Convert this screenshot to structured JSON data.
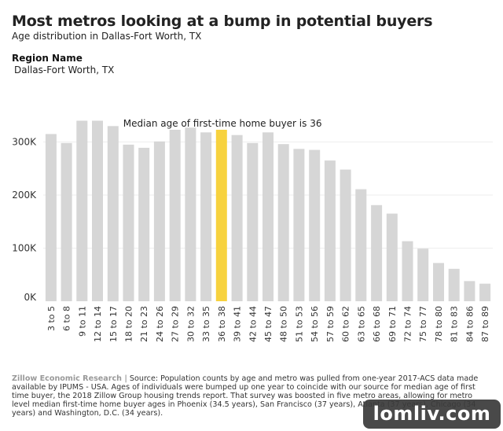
{
  "header": {
    "title": "Most metros looking at a bump in potential buyers",
    "subtitle": "Age distribution in Dallas-Fort Worth, TX"
  },
  "region": {
    "label": "Region Name",
    "value": "Dallas-Fort Worth, TX"
  },
  "chart_data": {
    "type": "bar",
    "title": "Most metros looking at a bump in potential buyers",
    "xlabel": "",
    "ylabel": "",
    "ylim": [
      0,
      350000
    ],
    "grid": true,
    "y_ticks": [
      {
        "value": 0,
        "label": "0K"
      },
      {
        "value": 100000,
        "label": "100K"
      },
      {
        "value": 200000,
        "label": "200K"
      },
      {
        "value": 300000,
        "label": "300K"
      }
    ],
    "categories": [
      "3 to 5",
      "6 to 8",
      "9 to 11",
      "12 to 14",
      "15 to 17",
      "18 to 20",
      "21 to 23",
      "24 to 26",
      "27 to 29",
      "30 to 32",
      "33 to 35",
      "36 to 38",
      "39 to 41",
      "42 to 44",
      "45 to 47",
      "48 to 50",
      "51 to 53",
      "54 to 56",
      "57 to 59",
      "60 to 62",
      "63 to 65",
      "66 to 68",
      "69 to 71",
      "72 to 74",
      "75 to 77",
      "78 to 80",
      "81 to 83",
      "84 to 86",
      "87 to 89"
    ],
    "values": [
      315000,
      298000,
      340000,
      340000,
      330000,
      295000,
      289000,
      301000,
      323000,
      327000,
      318000,
      323000,
      313000,
      298000,
      318000,
      296000,
      287000,
      285000,
      265000,
      248000,
      211000,
      181000,
      165000,
      113000,
      99000,
      72000,
      61000,
      38000,
      33000
    ],
    "highlight_category": "36 to 38",
    "colors": {
      "bar": "#d6d6d6",
      "highlight": "#f7d23e",
      "grid": "#eeeeee"
    },
    "annotation": "Median age of first-time home buyer is 36"
  },
  "footnote": {
    "brand": "Zillow Economic Research |",
    "text": " Source: Population counts by age and metro was pulled from one-year 2017-ACS data made available by IPUMS - USA. Ages of individuals were bumped up one year to coincide with our source for median age of first time buyer, the 2018 Zillow Group housing trends report. That survey was boosted in five metro areas, allowing for metro level median first-time home buyer ages in Phoenix (34.5 years), San Francisco (37 years), Atlanta (37 years), Chicago (34 years) and Washington, D.C. (34 years)."
  },
  "watermark": {
    "text": "lomliv.com"
  }
}
